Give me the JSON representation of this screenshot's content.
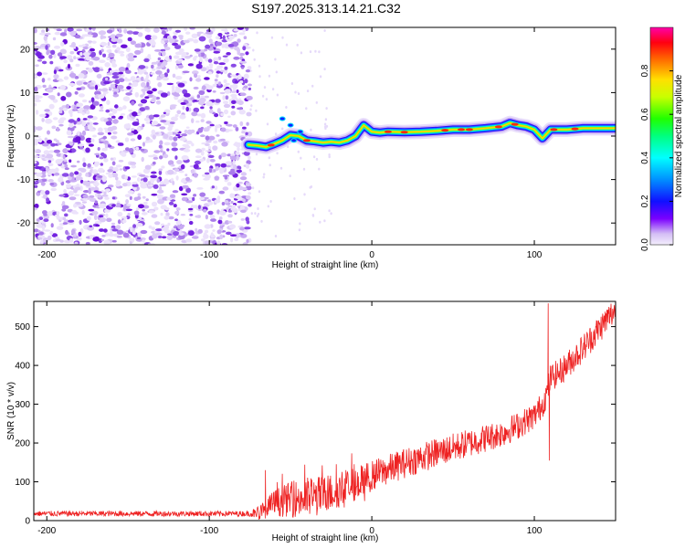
{
  "title": "S197.2025.313.14.21.C32",
  "chart_data": [
    {
      "type": "heatmap",
      "title": "S197.2025.313.14.21.C32",
      "xlabel": "Height of straight line (km)",
      "ylabel": "Frequency (Hz)",
      "xlim": [
        -208,
        150
      ],
      "ylim": [
        -25,
        25
      ],
      "xticks": [
        -200,
        -100,
        0,
        100
      ],
      "yticks": [
        -20,
        -10,
        0,
        10,
        20
      ],
      "noise_region": {
        "x_start": -208,
        "x_end": -75
      },
      "ridge": {
        "x": [
          -76,
          -70,
          -65,
          -60,
          -55,
          -50,
          -45,
          -40,
          -35,
          -30,
          -25,
          -20,
          -15,
          -10,
          -8,
          -5,
          0,
          5,
          10,
          20,
          30,
          40,
          50,
          60,
          70,
          80,
          85,
          90,
          95,
          100,
          105,
          110,
          120,
          130,
          140,
          150
        ],
        "freq": [
          -2,
          -2.2,
          -2.5,
          -1.8,
          -1,
          0.2,
          0,
          -1,
          -1.2,
          -1.5,
          -1.3,
          -1.5,
          -1,
          0,
          1,
          2.5,
          1,
          0.8,
          1,
          0.9,
          1,
          1.2,
          1.5,
          1.5,
          1.8,
          2.2,
          3,
          2.5,
          2.2,
          1.5,
          -0.5,
          1.5,
          1.5,
          1.8,
          1.8,
          1.8
        ]
      },
      "colorbar": {
        "label": "Normalized spectral amplitude",
        "range": [
          0,
          1
        ],
        "ticks": [
          0.0,
          0.2,
          0.4,
          0.6,
          0.8
        ]
      }
    },
    {
      "type": "line",
      "xlabel": "Height of straight line (km)",
      "ylabel": "SNR (10 * v/v)",
      "xlim": [
        -208,
        150
      ],
      "ylim": [
        0,
        565
      ],
      "xticks": [
        -200,
        -100,
        0,
        100
      ],
      "yticks": [
        0,
        100,
        200,
        300,
        400,
        500
      ],
      "color": "#ee2222",
      "trend": {
        "x": [
          -208,
          -150,
          -100,
          -75,
          -66,
          -60,
          -50,
          -40,
          -30,
          -20,
          -10,
          0,
          20,
          40,
          60,
          80,
          90,
          100,
          105,
          108,
          110,
          115,
          120,
          130,
          140,
          150
        ],
        "y": [
          18,
          18,
          18,
          18,
          22,
          45,
          55,
          58,
          65,
          80,
          95,
          115,
          148,
          175,
          200,
          225,
          245,
          270,
          300,
          330,
          370,
          380,
          400,
          445,
          495,
          545
        ]
      },
      "amplitude": {
        "x": [
          -208,
          -75,
          -66,
          -40,
          -20,
          0,
          100,
          150
        ],
        "a": [
          7,
          7,
          30,
          55,
          48,
          40,
          35,
          38
        ]
      },
      "spikes": [
        {
          "x": -65.5,
          "y": 130
        },
        {
          "x": 108.5,
          "y": 560
        },
        {
          "x": 109.2,
          "y": 155
        }
      ]
    }
  ]
}
